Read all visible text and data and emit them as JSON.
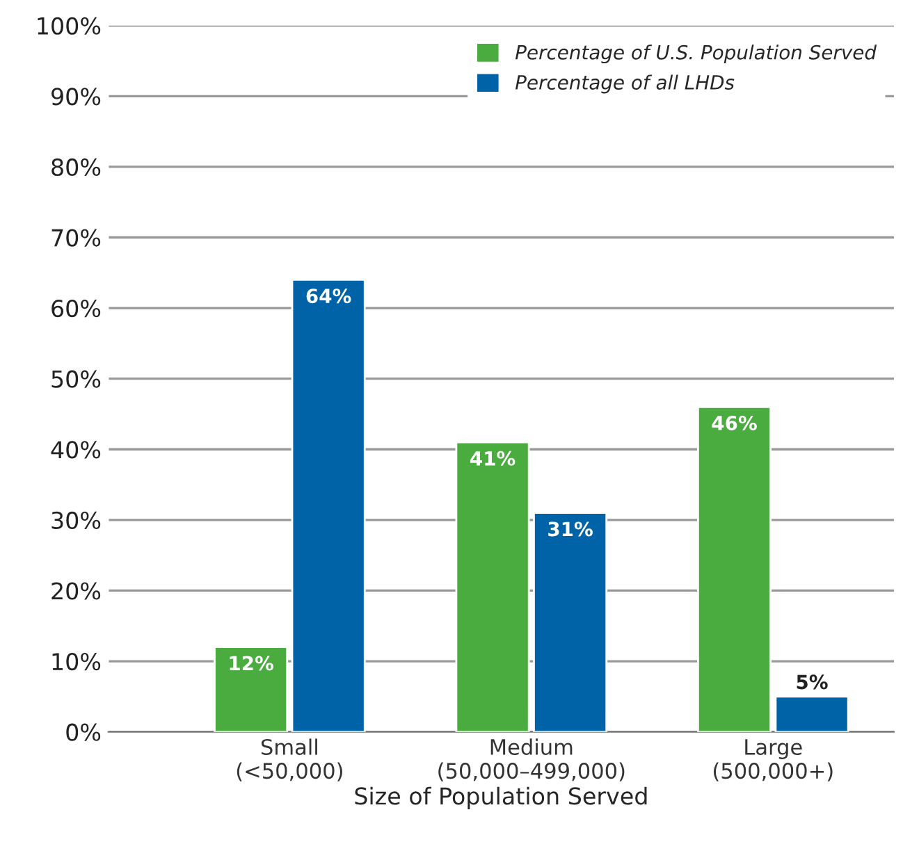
{
  "chart_data": {
    "type": "bar",
    "xlabel": "Size of Population Served",
    "categories": [
      "Small\n(<50,000)",
      "Medium\n(50,000–499,000)",
      "Large\n(500,000+)"
    ],
    "series": [
      {
        "name": "Percentage of U.S. Population Served",
        "color": "#4aab3f",
        "values": [
          12,
          41,
          46
        ],
        "value_labels": [
          "12%",
          "41%",
          "46%"
        ]
      },
      {
        "name": "Percentage of all LHDs",
        "color": "#0063a8",
        "values": [
          64,
          31,
          5
        ],
        "value_labels": [
          "64%",
          "31%",
          "5%"
        ]
      }
    ],
    "ylim": [
      0,
      100
    ],
    "yticks": [
      {
        "value": 0,
        "label": "0%"
      },
      {
        "value": 10,
        "label": "10%"
      },
      {
        "value": 20,
        "label": "20%"
      },
      {
        "value": 30,
        "label": "30%"
      },
      {
        "value": 40,
        "label": "40%"
      },
      {
        "value": 50,
        "label": "50%"
      },
      {
        "value": 60,
        "label": "60%"
      },
      {
        "value": 70,
        "label": "70%"
      },
      {
        "value": 80,
        "label": "80%"
      },
      {
        "value": 90,
        "label": "90%"
      },
      {
        "value": 100,
        "label": "100%"
      }
    ],
    "grid": "y",
    "legend": "top right"
  }
}
